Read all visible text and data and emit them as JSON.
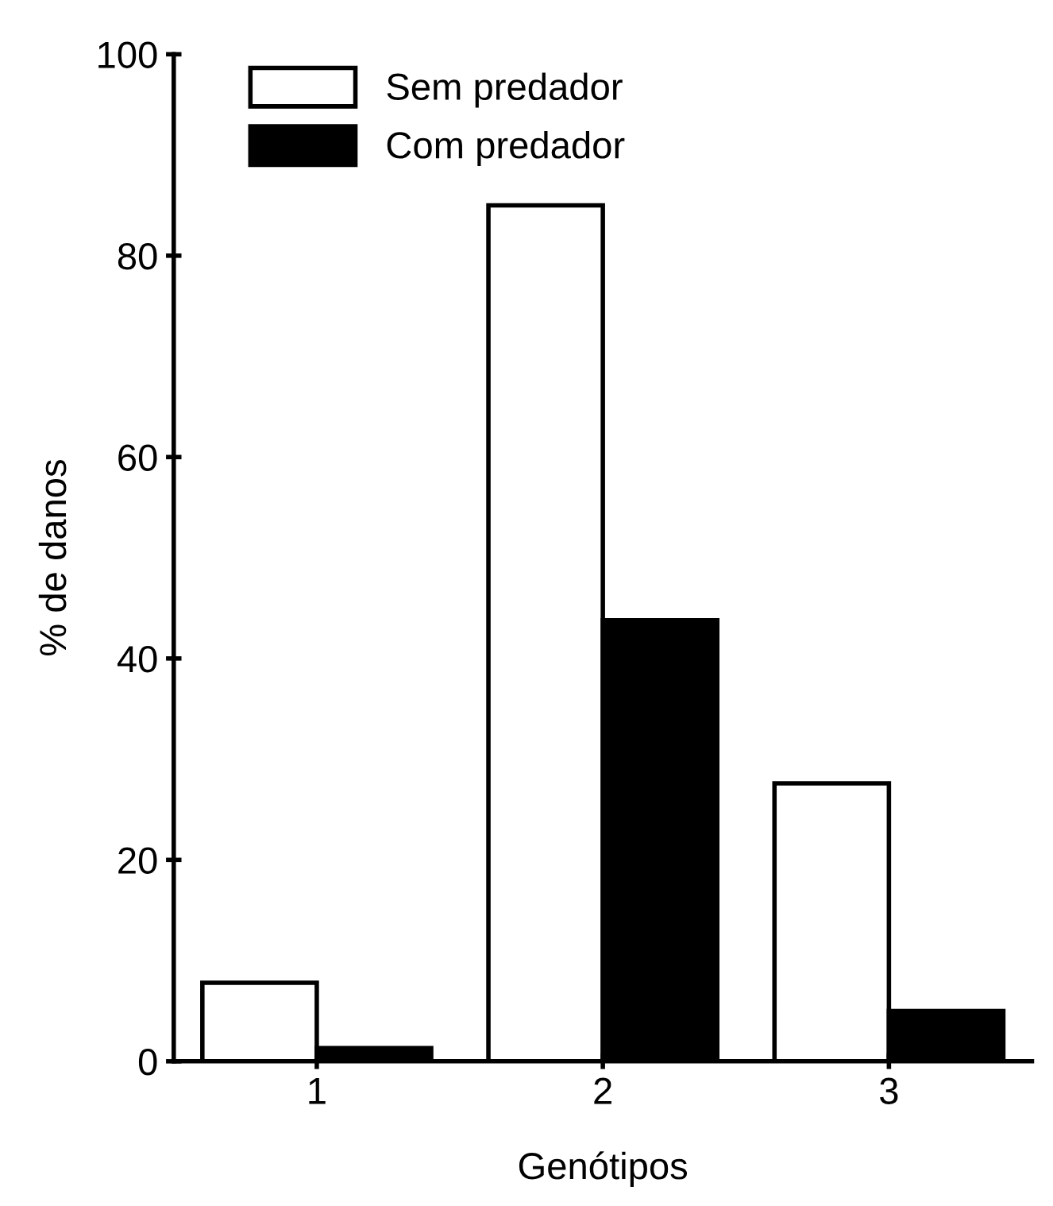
{
  "chart_data": {
    "type": "bar",
    "xlabel": "Genótipos",
    "ylabel": "% de danos",
    "categories": [
      "1",
      "2",
      "3"
    ],
    "series": [
      {
        "name": "Sem predador",
        "color": "#ffffff",
        "values": [
          7.8,
          85,
          27.6
        ]
      },
      {
        "name": "Com predador",
        "color": "#000000",
        "values": [
          1.3,
          43.8,
          5
        ]
      }
    ],
    "ylim": [
      0,
      100
    ],
    "yticks": [
      0,
      20,
      40,
      60,
      80,
      100
    ],
    "grid": false,
    "legend": "top left"
  }
}
